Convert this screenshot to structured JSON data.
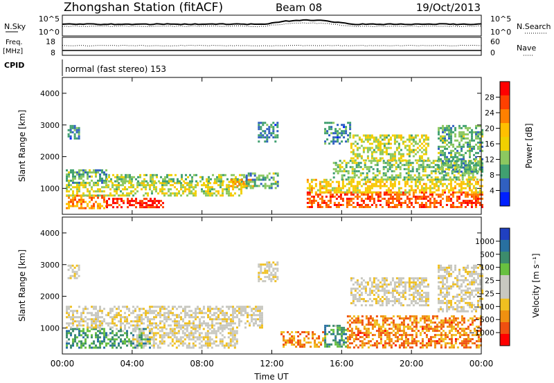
{
  "header": {
    "station": "Zhongshan Station (fitACF)",
    "beam": "Beam 08",
    "date": "19/Oct/2013"
  },
  "top_panels": {
    "nsky_label": "N.Sky",
    "nsky_ticks": [
      "10^5",
      "10^0"
    ],
    "nsearch_label": "N.Search",
    "nsearch_ticks": [
      "10^5",
      "10^0"
    ],
    "freq_label": "Freq.",
    "freq_unit": "[MHz]",
    "freq_ticks": [
      "18",
      "8"
    ],
    "nave_label": "Nave",
    "nave_ticks": [
      "60",
      "0"
    ],
    "cpid_label": "CPID",
    "cpid_value": "normal (fast stereo) 153"
  },
  "chart_data": [
    {
      "type": "heatmap",
      "name": "power",
      "ylabel": "Slant Range [km]",
      "yticks": [
        "4000",
        "3000",
        "2000",
        "1000"
      ],
      "ylim": [
        180,
        4500
      ],
      "colorbar_label": "Power [dB]",
      "colorbar_ticks": [
        "28",
        "24",
        "20",
        "16",
        "12",
        "8",
        "4"
      ],
      "colorbar_colors": [
        "#ff0000",
        "#ff4000",
        "#ff8000",
        "#ffc000",
        "#f0d000",
        "#8cc860",
        "#40a070",
        "#3060c0",
        "#0020ff"
      ],
      "blobs": [
        {
          "t0": 0.2,
          "t1": 2.5,
          "r0": 400,
          "r1": 800,
          "level": 0.75
        },
        {
          "t0": 2.5,
          "t1": 5.8,
          "r0": 400,
          "r1": 700,
          "level": 0.95
        },
        {
          "t0": 0.2,
          "t1": 10.5,
          "r0": 800,
          "r1": 1200,
          "level": 0.45
        },
        {
          "t0": 0.2,
          "t1": 2.5,
          "r0": 1200,
          "r1": 1600,
          "level": 0.3
        },
        {
          "t0": 2.5,
          "t1": 10.5,
          "r0": 1200,
          "r1": 1450,
          "level": 0.35
        },
        {
          "t0": 9.5,
          "t1": 11.0,
          "r0": 1050,
          "r1": 1300,
          "level": 0.65
        },
        {
          "t0": 0.3,
          "t1": 1.0,
          "r0": 2600,
          "r1": 3000,
          "level": 0.2
        },
        {
          "t0": 10.5,
          "t1": 12.3,
          "r0": 1000,
          "r1": 1500,
          "level": 0.3
        },
        {
          "t0": 11.2,
          "t1": 12.3,
          "r0": 2500,
          "r1": 3100,
          "level": 0.2
        },
        {
          "t0": 14.0,
          "t1": 24.0,
          "r0": 400,
          "r1": 900,
          "level": 0.85
        },
        {
          "t0": 14.0,
          "t1": 24.0,
          "r0": 900,
          "r1": 1300,
          "level": 0.55
        },
        {
          "t0": 15.5,
          "t1": 24.0,
          "r0": 1300,
          "r1": 1900,
          "level": 0.35
        },
        {
          "t0": 16.5,
          "t1": 21.0,
          "r0": 1900,
          "r1": 2700,
          "level": 0.45
        },
        {
          "t0": 21.5,
          "t1": 24.0,
          "r0": 1500,
          "r1": 3000,
          "level": 0.3
        },
        {
          "t0": 15.0,
          "t1": 16.5,
          "r0": 2400,
          "r1": 3100,
          "level": 0.2
        }
      ]
    },
    {
      "type": "heatmap",
      "name": "velocity",
      "ylabel": "Slant Range [km]",
      "yticks": [
        "4000",
        "3000",
        "2000",
        "1000"
      ],
      "ylim": [
        180,
        4500
      ],
      "colorbar_label": "Velocity [m s⁻¹]",
      "colorbar_ticks": [
        "1000",
        "500",
        "100",
        "25",
        "−25",
        "−100",
        "−500",
        "−1000"
      ],
      "colorbar_colors": [
        "#2040c0",
        "#2870a0",
        "#3c8c6c",
        "#68c040",
        "#c8c8c0",
        "#c8c8c0",
        "#f0c020",
        "#f09010",
        "#f05010",
        "#ff0000"
      ],
      "blobs": [
        {
          "t0": 0.2,
          "t1": 5.0,
          "r0": 400,
          "r1": 1000,
          "level": 0.75
        },
        {
          "t0": 0.2,
          "t1": 11.5,
          "r0": 1000,
          "r1": 1700,
          "level": 0.45
        },
        {
          "t0": 4.0,
          "t1": 10.0,
          "r0": 400,
          "r1": 1000,
          "level": 0.45
        },
        {
          "t0": 12.5,
          "t1": 15.0,
          "r0": 400,
          "r1": 900,
          "level": 0.2
        },
        {
          "t0": 15.0,
          "t1": 16.3,
          "r0": 400,
          "r1": 1100,
          "level": 0.75
        },
        {
          "t0": 16.3,
          "t1": 24.0,
          "r0": 400,
          "r1": 1400,
          "level": 0.2
        },
        {
          "t0": 16.5,
          "t1": 21.0,
          "r0": 1700,
          "r1": 2600,
          "level": 0.45
        },
        {
          "t0": 21.5,
          "t1": 24.0,
          "r0": 1500,
          "r1": 3000,
          "level": 0.45
        },
        {
          "t0": 0.3,
          "t1": 1.0,
          "r0": 2600,
          "r1": 3000,
          "level": 0.45
        },
        {
          "t0": 11.2,
          "t1": 12.3,
          "r0": 2500,
          "r1": 3100,
          "level": 0.45
        }
      ]
    }
  ],
  "xaxis": {
    "label": "Time UT",
    "ticks": [
      "00:00",
      "04:00",
      "08:00",
      "12:00",
      "16:00",
      "20:00",
      "00:00"
    ],
    "range": [
      0,
      24
    ]
  }
}
